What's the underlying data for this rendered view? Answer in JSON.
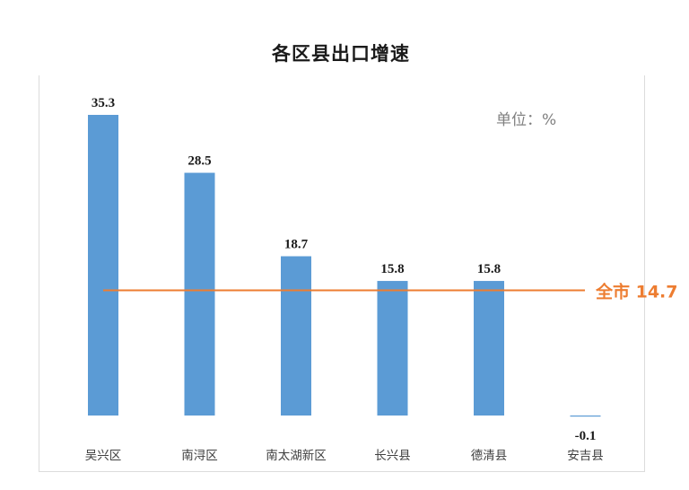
{
  "chart_data": {
    "type": "bar",
    "title": "各区县出口增速",
    "unit_label": "单位：%",
    "categories": [
      "吴兴区",
      "南浔区",
      "南太湖新区",
      "长兴县",
      "德清县",
      "安吉县"
    ],
    "values": [
      35.3,
      28.5,
      18.7,
      15.8,
      15.8,
      -0.1
    ],
    "value_labels": [
      "35.3",
      "28.5",
      "18.7",
      "15.8",
      "15.8",
      "-0.1"
    ],
    "bar_color": "#5B9BD5",
    "reference_line": {
      "label": "全市 14.7",
      "value": 14.7,
      "color": "#ED7D31"
    },
    "xlabel": "",
    "ylabel": "",
    "grid": false,
    "legend": "none"
  }
}
